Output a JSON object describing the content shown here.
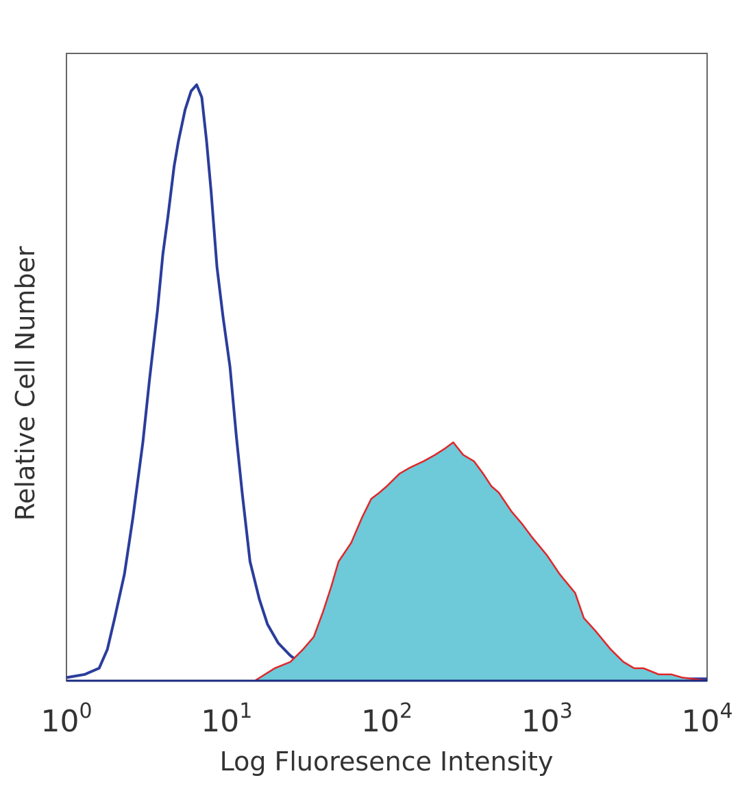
{
  "chart_data": {
    "type": "area",
    "title": "",
    "xlabel": "Log Fluoresence Intensity",
    "ylabel": "Relative Cell Number",
    "x_scale": "log",
    "xlim": [
      1,
      10000
    ],
    "ylim": [
      0,
      100
    ],
    "grid": false,
    "legend": "none",
    "x_ticks": [
      {
        "value": 1,
        "base": "10",
        "exp": "0"
      },
      {
        "value": 10,
        "base": "10",
        "exp": "1"
      },
      {
        "value": 100,
        "base": "10",
        "exp": "2"
      },
      {
        "value": 1000,
        "base": "10",
        "exp": "3"
      },
      {
        "value": 10000,
        "base": "10",
        "exp": "4"
      }
    ],
    "series": [
      {
        "style": "line",
        "color": "#2a3d9c",
        "points": [
          [
            1,
            0.5
          ],
          [
            1.3,
            1
          ],
          [
            1.6,
            2
          ],
          [
            1.8,
            5
          ],
          [
            2.0,
            10
          ],
          [
            2.3,
            17
          ],
          [
            2.6,
            26
          ],
          [
            3.0,
            38
          ],
          [
            3.3,
            48
          ],
          [
            3.7,
            59
          ],
          [
            4.0,
            68
          ],
          [
            4.3,
            74
          ],
          [
            4.7,
            82
          ],
          [
            5.0,
            86
          ],
          [
            5.5,
            91
          ],
          [
            6.0,
            94
          ],
          [
            6.5,
            95
          ],
          [
            7.0,
            93
          ],
          [
            7.5,
            86
          ],
          [
            8.0,
            78
          ],
          [
            8.7,
            66
          ],
          [
            9.5,
            58
          ],
          [
            10.5,
            50
          ],
          [
            11.5,
            39
          ],
          [
            12.5,
            30
          ],
          [
            14,
            19
          ],
          [
            16,
            13
          ],
          [
            18,
            9
          ],
          [
            21,
            6
          ],
          [
            25,
            4
          ],
          [
            30,
            2.5
          ],
          [
            35,
            1.2
          ],
          [
            45,
            0.5
          ],
          [
            100,
            0.3
          ],
          [
            10000,
            0.3
          ]
        ]
      },
      {
        "style": "filled",
        "color": "#e0262a",
        "fill": "#6ec9d8",
        "points": [
          [
            1,
            0
          ],
          [
            15,
            0
          ],
          [
            20,
            2
          ],
          [
            25,
            3
          ],
          [
            30,
            5
          ],
          [
            35,
            7
          ],
          [
            40,
            11
          ],
          [
            45,
            15
          ],
          [
            50,
            19
          ],
          [
            60,
            22
          ],
          [
            70,
            26
          ],
          [
            80,
            29
          ],
          [
            90,
            30
          ],
          [
            100,
            31
          ],
          [
            120,
            33
          ],
          [
            140,
            34
          ],
          [
            170,
            35
          ],
          [
            200,
            36
          ],
          [
            230,
            37
          ],
          [
            260,
            38
          ],
          [
            300,
            36
          ],
          [
            350,
            35
          ],
          [
            400,
            33
          ],
          [
            450,
            31
          ],
          [
            500,
            30
          ],
          [
            600,
            27
          ],
          [
            700,
            25
          ],
          [
            800,
            23
          ],
          [
            1000,
            20
          ],
          [
            1200,
            17
          ],
          [
            1500,
            14
          ],
          [
            1700,
            10
          ],
          [
            2000,
            8
          ],
          [
            2500,
            5
          ],
          [
            3000,
            3
          ],
          [
            3500,
            2
          ],
          [
            4000,
            2
          ],
          [
            5000,
            1
          ],
          [
            6000,
            1
          ],
          [
            7000,
            0.5
          ],
          [
            10000,
            0
          ]
        ]
      }
    ]
  }
}
